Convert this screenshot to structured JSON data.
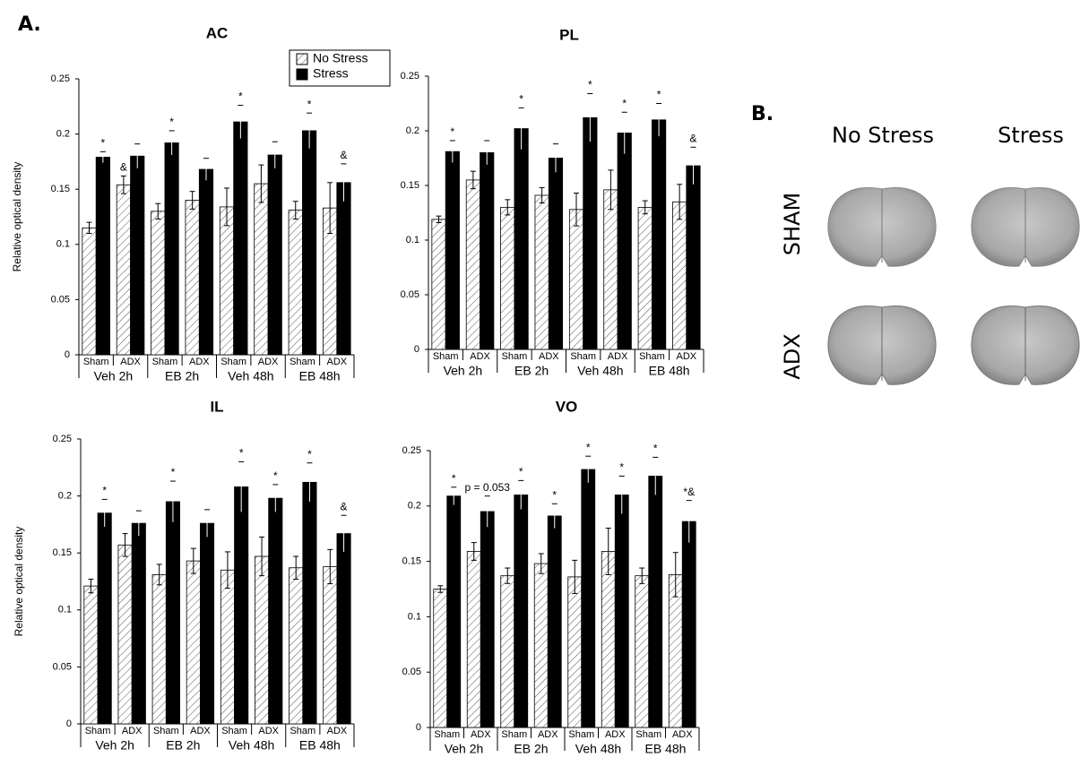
{
  "figure": {
    "panel_a_label": "A.",
    "panel_b_label": "B.",
    "column_labels": [
      "No Stress",
      "Stress"
    ],
    "row_labels": [
      "SHAM",
      "ADX"
    ]
  },
  "chart_data": [
    {
      "type": "bar",
      "title": "AC",
      "y_label": "Relative optical density",
      "legend": "upper right",
      "categories": [
        "Sham",
        "ADX",
        "Sham",
        "ADX",
        "Sham",
        "ADX",
        "Sham",
        "ADX"
      ],
      "groups": [
        "Veh 2h",
        "EB 2h",
        "Veh 48h",
        "EB 48h"
      ],
      "ylim": [
        0,
        0.25
      ],
      "yticks": [
        0,
        0.05,
        0.1,
        0.15,
        0.2,
        0.25
      ],
      "series": [
        {
          "name": "No Stress",
          "color": "#ffffff",
          "hatch": true,
          "values": [
            0.115,
            0.154,
            0.13,
            0.14,
            0.134,
            0.155,
            0.131,
            0.133
          ],
          "errors": [
            0.005,
            0.008,
            0.007,
            0.008,
            0.017,
            0.017,
            0.008,
            0.023
          ],
          "labels": [
            null,
            "&",
            null,
            null,
            null,
            null,
            null,
            null
          ]
        },
        {
          "name": "Stress",
          "color": "#000000",
          "hatch": false,
          "values": [
            0.179,
            0.18,
            0.192,
            0.168,
            0.211,
            0.181,
            0.203,
            0.156
          ],
          "errors": [
            0.005,
            0.011,
            0.011,
            0.01,
            0.015,
            0.012,
            0.016,
            0.017
          ],
          "labels": [
            "*",
            null,
            "*",
            null,
            "*",
            null,
            "*",
            "&"
          ]
        }
      ]
    },
    {
      "type": "bar",
      "title": "PL",
      "categories": [
        "Sham",
        "ADX",
        "Sham",
        "ADX",
        "Sham",
        "ADX",
        "Sham",
        "ADX"
      ],
      "groups": [
        "Veh 2h",
        "EB 2h",
        "Veh 48h",
        "EB 48h"
      ],
      "ylim": [
        0,
        0.25
      ],
      "yticks": [
        0,
        0.05,
        0.1,
        0.15,
        0.2,
        0.25
      ],
      "series": [
        {
          "color": "#ffffff",
          "hatch": true,
          "values": [
            0.119,
            0.155,
            0.13,
            0.141,
            0.128,
            0.146,
            0.13,
            0.135
          ],
          "errors": [
            0.003,
            0.008,
            0.007,
            0.007,
            0.015,
            0.018,
            0.006,
            0.016
          ]
        },
        {
          "color": "#000000",
          "hatch": false,
          "values": [
            0.181,
            0.18,
            0.202,
            0.175,
            0.212,
            0.198,
            0.21,
            0.168
          ],
          "errors": [
            0.01,
            0.011,
            0.019,
            0.013,
            0.022,
            0.019,
            0.015,
            0.017
          ],
          "labels": [
            "*",
            null,
            "*",
            null,
            "*",
            "*",
            "*",
            "&"
          ]
        }
      ]
    },
    {
      "type": "bar",
      "title": "IL",
      "y_label": "Relative optical density",
      "categories": [
        "Sham",
        "ADX",
        "Sham",
        "ADX",
        "Sham",
        "ADX",
        "Sham",
        "ADX"
      ],
      "groups": [
        "Veh 2h",
        "EB 2h",
        "Veh 48h",
        "EB 48h"
      ],
      "ylim": [
        0,
        0.25
      ],
      "yticks": [
        0,
        0.05,
        0.1,
        0.15,
        0.2,
        0.25
      ],
      "series": [
        {
          "color": "#ffffff",
          "hatch": true,
          "values": [
            0.121,
            0.157,
            0.131,
            0.143,
            0.135,
            0.147,
            0.137,
            0.138
          ],
          "errors": [
            0.006,
            0.01,
            0.009,
            0.011,
            0.016,
            0.017,
            0.01,
            0.015
          ]
        },
        {
          "color": "#000000",
          "hatch": false,
          "values": [
            0.185,
            0.176,
            0.195,
            0.176,
            0.208,
            0.198,
            0.212,
            0.167
          ],
          "errors": [
            0.012,
            0.011,
            0.018,
            0.012,
            0.022,
            0.012,
            0.017,
            0.016
          ],
          "labels": [
            "*",
            null,
            "*",
            null,
            "*",
            "*",
            "*",
            "&"
          ]
        }
      ]
    },
    {
      "type": "bar",
      "title": "VO",
      "categories": [
        "Sham",
        "ADX",
        "Sham",
        "ADX",
        "Sham",
        "ADX",
        "Sham",
        "ADX"
      ],
      "groups": [
        "Veh 2h",
        "EB 2h",
        "Veh 48h",
        "EB 48h"
      ],
      "ylim": [
        0,
        0.25
      ],
      "yticks": [
        0,
        0.05,
        0.1,
        0.15,
        0.2,
        0.25
      ],
      "series": [
        {
          "color": "#ffffff",
          "hatch": true,
          "values": [
            0.125,
            0.159,
            0.137,
            0.148,
            0.136,
            0.159,
            0.137,
            0.138
          ],
          "errors": [
            0.003,
            0.008,
            0.007,
            0.009,
            0.015,
            0.021,
            0.007,
            0.02
          ]
        },
        {
          "color": "#000000",
          "hatch": false,
          "values": [
            0.209,
            0.195,
            0.21,
            0.191,
            0.233,
            0.21,
            0.227,
            0.186
          ],
          "errors": [
            0.008,
            0.014,
            0.013,
            0.011,
            0.012,
            0.017,
            0.017,
            0.019
          ],
          "labels": [
            "*",
            "p = 0.053",
            "*",
            "*",
            "*",
            "*",
            "*",
            "*&"
          ]
        }
      ]
    }
  ]
}
